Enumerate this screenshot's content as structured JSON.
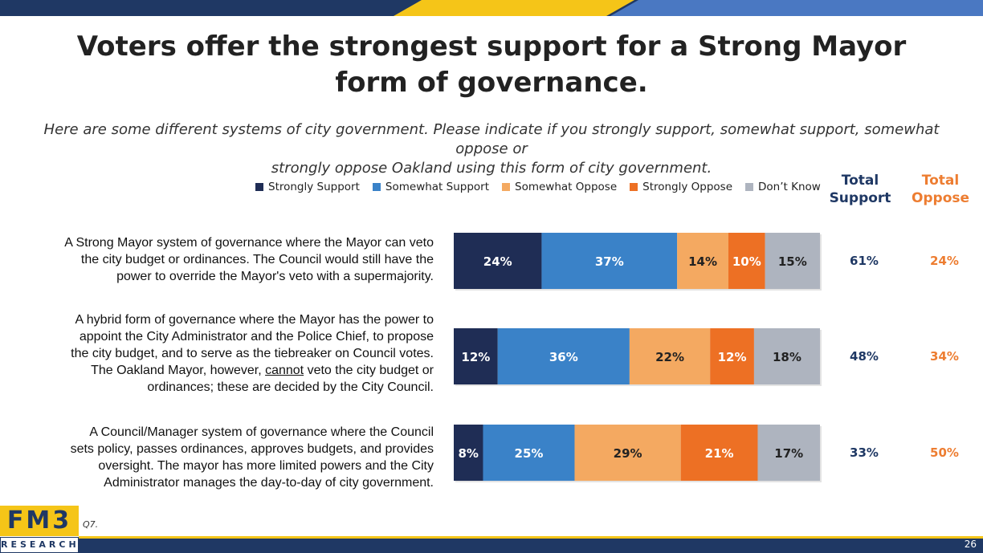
{
  "page": {
    "title_line1": "Voters offer the strongest support for a Strong Mayor",
    "title_line2": "form of governance.",
    "subtitle_line1": "Here are some different systems of city government. Please indicate if you strongly support, somewhat support, somewhat oppose or",
    "subtitle_line2": "strongly oppose Oakland using this form of city government.",
    "question_ref": "Q7.",
    "page_number": "26",
    "logo_top": "FM3",
    "logo_bottom": "RESEARCH"
  },
  "colors": {
    "navy": "#1f3864",
    "yellow": "#f5c518",
    "blue_light": "#4a78c2"
  },
  "chart_data": {
    "type": "bar",
    "orientation": "horizontal-stacked-100",
    "series": [
      {
        "name": "Strongly Support",
        "color": "#1f2d55",
        "values": [
          24,
          12,
          8
        ]
      },
      {
        "name": "Somewhat Support",
        "color": "#3a82c8",
        "values": [
          37,
          36,
          25
        ]
      },
      {
        "name": "Somewhat Oppose",
        "color": "#f4a961",
        "values": [
          14,
          22,
          29
        ]
      },
      {
        "name": "Strongly Oppose",
        "color": "#ed7024",
        "values": [
          10,
          12,
          21
        ]
      },
      {
        "name": "Don’t Know",
        "color": "#aeb4bf",
        "values": [
          15,
          18,
          17
        ]
      }
    ],
    "categories": [
      {
        "label_lines": [
          "A Strong Mayor system of governance where the Mayor can veto",
          "the city budget or ordinances. The Council would still have the",
          "power to override the Mayor's veto with a supermajority."
        ]
      },
      {
        "label_lines": [
          "A hybrid form of governance where the Mayor has the power to",
          "appoint the City Administrator and the Police Chief, to propose",
          "the city budget, and to serve as the tiebreaker on Council votes.",
          "The Oakland Mayor, however, cannot veto the city budget or",
          "ordinances; these are decided by the City Council."
        ]
      },
      {
        "label_lines": [
          "A Council/Manager system of governance where the Council",
          "sets policy, passes ordinances, approves budgets, and provides",
          "oversight. The mayor has more limited powers and the City",
          "Administrator manages the day-to-day of city government."
        ]
      }
    ],
    "total_support_header": [
      "Total",
      "Support"
    ],
    "total_oppose_header": [
      "Total",
      "Oppose"
    ],
    "total_support": [
      "61%",
      "48%",
      "33%"
    ],
    "total_oppose": [
      "24%",
      "34%",
      "50%"
    ],
    "total_support_color": "#1f3864",
    "total_oppose_color": "#ed7d31"
  }
}
